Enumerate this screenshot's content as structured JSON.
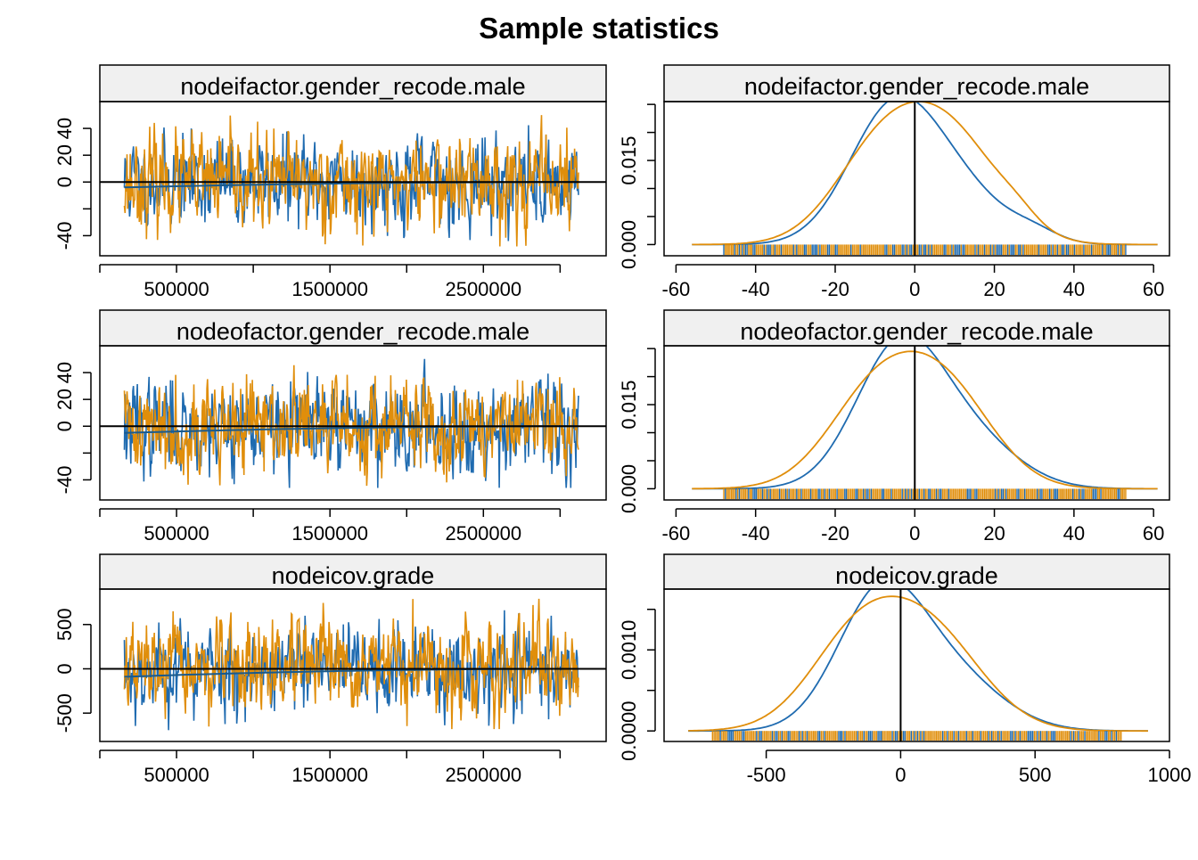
{
  "page": {
    "title": "Sample statistics"
  },
  "colors": {
    "chain1": "#1f6bb0",
    "chain2": "#e08e0b",
    "strip_bg": "#f0f0f0",
    "axis": "#000000"
  },
  "chart_data": [
    {
      "type": "line",
      "panel": "trace",
      "title": "nodeifactor.gender_recode.male",
      "xlim": [
        0,
        3300000
      ],
      "ylim": [
        -55,
        60
      ],
      "x_ticks": [
        500000,
        1500000,
        2500000
      ],
      "x_tick_labels": [
        "500000",
        "1500000",
        "2500000"
      ],
      "y_ticks": [
        -40,
        -20,
        0,
        20,
        40
      ],
      "y_tick_labels": [
        "-40",
        "",
        "0",
        "20",
        "40"
      ],
      "x_range": [
        160000,
        3120000
      ],
      "series": [
        {
          "amplitude": 15,
          "max": 52,
          "min": -44,
          "seed": 11
        },
        {
          "amplitude": 16,
          "max": 50,
          "min": -48,
          "seed": 23
        }
      ],
      "mean_line": {
        "start": -4,
        "end": 0
      },
      "hline": 0,
      "grid": false
    },
    {
      "type": "line",
      "panel": "density",
      "title": "nodeifactor.gender_recode.male",
      "xlim": [
        -63,
        64
      ],
      "ylim": [
        -0.002,
        0.0255
      ],
      "x_ticks": [
        -60,
        -40,
        -20,
        0,
        20,
        40,
        60
      ],
      "x_tick_labels": [
        "-60",
        "-40",
        "-20",
        "0",
        "20",
        "40",
        "60"
      ],
      "y_ticks": [
        0,
        0.005,
        0.01,
        0.015,
        0.02,
        0.025
      ],
      "y_tick_labels": [
        "0.000",
        "",
        "",
        "0.015",
        "",
        ""
      ],
      "density_range": [
        -56,
        61
      ],
      "series": [
        {
          "peaks": [
            {
              "mu": -6,
              "sd": 11,
              "w": 0.7
            },
            {
              "mu": 10,
              "sd": 12,
              "w": 0.3
            },
            {
              "mu": 30,
              "sd": 6,
              "w": 0.05
            }
          ],
          "max": 0.0265
        },
        {
          "peaks": [
            {
              "mu": -8,
              "sd": 12,
              "w": 0.5
            },
            {
              "mu": 10,
              "sd": 12,
              "w": 0.5
            },
            {
              "mu": 26,
              "sd": 5,
              "w": 0.05
            }
          ],
          "max": 0.0255
        }
      ],
      "vline": 0,
      "rug": {
        "min": -48,
        "max": 53
      },
      "grid": false
    },
    {
      "type": "line",
      "panel": "trace",
      "title": "nodeofactor.gender_recode.male",
      "xlim": [
        0,
        3300000
      ],
      "ylim": [
        -55,
        60
      ],
      "x_ticks": [
        500000,
        1500000,
        2500000
      ],
      "x_tick_labels": [
        "500000",
        "1500000",
        "2500000"
      ],
      "y_ticks": [
        -40,
        -20,
        0,
        20,
        40
      ],
      "y_tick_labels": [
        "-40",
        "",
        "0",
        "20",
        "40"
      ],
      "x_range": [
        160000,
        3120000
      ],
      "series": [
        {
          "amplitude": 16,
          "max": 52,
          "min": -46,
          "seed": 37
        },
        {
          "amplitude": 16,
          "max": 50,
          "min": -47,
          "seed": 41
        }
      ],
      "mean_line": {
        "start": -5,
        "end": 0
      },
      "hline": 0,
      "grid": false
    },
    {
      "type": "line",
      "panel": "density",
      "title": "nodeofactor.gender_recode.male",
      "xlim": [
        -63,
        64
      ],
      "ylim": [
        -0.002,
        0.0255
      ],
      "x_ticks": [
        -60,
        -40,
        -20,
        0,
        20,
        40,
        60
      ],
      "x_tick_labels": [
        "-60",
        "-40",
        "-20",
        "0",
        "20",
        "40",
        "60"
      ],
      "y_ticks": [
        0,
        0.005,
        0.01,
        0.015,
        0.02,
        0.025
      ],
      "y_tick_labels": [
        "0.000",
        "",
        "",
        "0.015",
        "",
        ""
      ],
      "density_range": [
        -56,
        61
      ],
      "series": [
        {
          "peaks": [
            {
              "mu": -4,
              "sd": 11,
              "w": 0.75
            },
            {
              "mu": 14,
              "sd": 12,
              "w": 0.25
            }
          ],
          "max": 0.0275
        },
        {
          "peaks": [
            {
              "mu": -10,
              "sd": 12,
              "w": 0.5
            },
            {
              "mu": 8,
              "sd": 12,
              "w": 0.5
            }
          ],
          "max": 0.0245
        }
      ],
      "vline": 0,
      "rug": {
        "min": -48,
        "max": 53
      },
      "grid": false
    },
    {
      "type": "line",
      "panel": "trace",
      "title": "nodeicov.grade",
      "xlim": [
        0,
        3300000
      ],
      "ylim": [
        -820,
        900
      ],
      "x_ticks": [
        500000,
        1500000,
        2500000
      ],
      "x_tick_labels": [
        "500000",
        "1500000",
        "2500000"
      ],
      "y_ticks": [
        -500,
        0,
        500
      ],
      "y_tick_labels": [
        "-500",
        "0",
        "500"
      ],
      "x_range": [
        160000,
        3120000
      ],
      "series": [
        {
          "amplitude": 230,
          "max": 810,
          "min": -700,
          "seed": 53
        },
        {
          "amplitude": 230,
          "max": 790,
          "min": -680,
          "seed": 67
        }
      ],
      "mean_line": {
        "start": -90,
        "end": 0
      },
      "hline": 0,
      "grid": false
    },
    {
      "type": "line",
      "panel": "density",
      "title": "nodeicov.grade",
      "xlim": [
        -880,
        1000
      ],
      "ylim": [
        -0.00013,
        0.00175
      ],
      "x_ticks": [
        -500,
        0,
        500,
        1000
      ],
      "x_tick_labels": [
        "-500",
        "0",
        "500",
        "1000"
      ],
      "y_ticks": [
        0,
        0.0005,
        0.001,
        0.0015
      ],
      "y_tick_labels": [
        "0.0000",
        "",
        "0.0010",
        ""
      ],
      "density_range": [
        -790,
        920
      ],
      "series": [
        {
          "peaks": [
            {
              "mu": -80,
              "sd": 160,
              "w": 0.7
            },
            {
              "mu": 180,
              "sd": 190,
              "w": 0.3
            }
          ],
          "max": 0.00187
        },
        {
          "peaks": [
            {
              "mu": -160,
              "sd": 180,
              "w": 0.5
            },
            {
              "mu": 120,
              "sd": 190,
              "w": 0.5
            }
          ],
          "max": 0.00166
        }
      ],
      "vline": 0,
      "rug": {
        "min": -700,
        "max": 820
      },
      "grid": false
    }
  ]
}
